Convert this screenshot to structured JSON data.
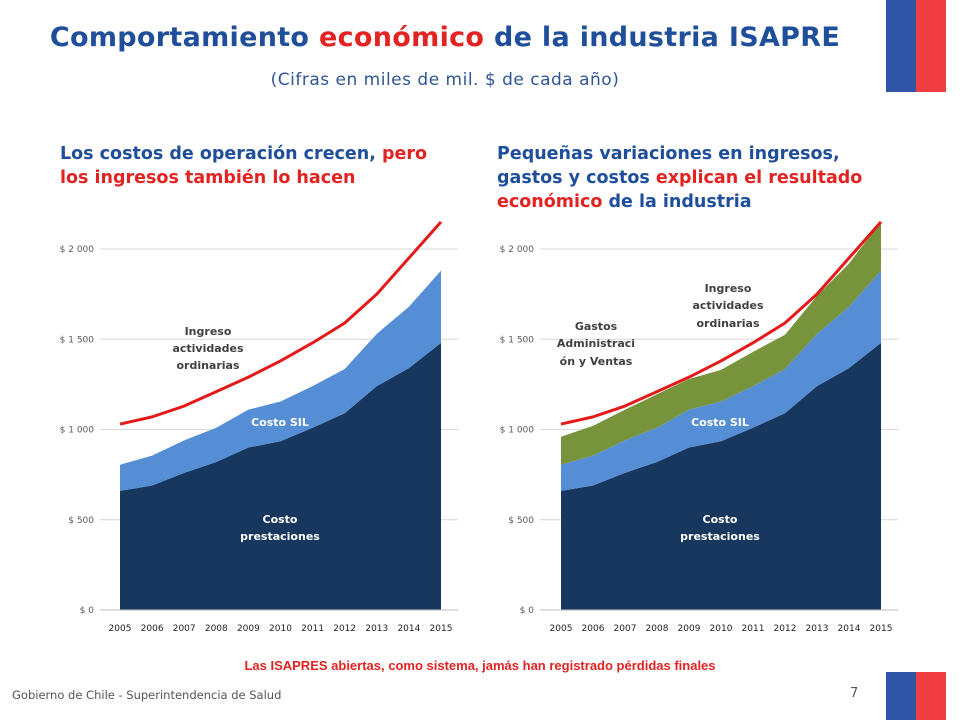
{
  "slide": {
    "title_pre": "Comportamiento ",
    "title_highlight": "económico",
    "title_post": " de la industria ISAPRE",
    "subtitle": "(Cifras en miles de mil. $ de cada año)",
    "left_heading_pre": "Los costos de operación crecen, ",
    "left_heading_highlight": "pero los ingresos también lo hacen",
    "right_heading_pre": "Pequeñas variaciones en ingresos, gastos y costos ",
    "right_heading_highlight": "explican el resultado económico",
    "right_heading_post": " de la industria",
    "note": "Las ISAPRES abiertas, como sistema, jamás han registrado pérdidas finales",
    "footer": "Gobierno de Chile - Superintendencia de Salud",
    "page_number": "7",
    "colors": {
      "title_blue": "#1f4e9a",
      "accent_red": "#e32222",
      "costo_prestaciones": "#17375e",
      "costo_sil": "#558ed5",
      "gastos_admin": "#77933c",
      "ingreso_line": "#e41a1a"
    }
  },
  "chart_data": [
    {
      "type": "area",
      "categories": [
        "2005",
        "2006",
        "2007",
        "2008",
        "2009",
        "2010",
        "2011",
        "2012",
        "2013",
        "2014",
        "2015"
      ],
      "ylim": [
        0,
        2000
      ],
      "yticks": [
        0,
        500,
        1000,
        1500,
        2000
      ],
      "ytick_labels": [
        "$ 0",
        "$ 500",
        "$ 1 000",
        "$ 1 500",
        "$ 2 000"
      ],
      "stacked": true,
      "grid": true,
      "series": [
        {
          "name": "Costo prestaciones",
          "kind": "area",
          "color": "#17375e",
          "values": [
            660,
            690,
            760,
            820,
            900,
            935,
            1010,
            1090,
            1240,
            1340,
            1480
          ]
        },
        {
          "name": "Costo SIL",
          "kind": "area",
          "color": "#558ed5",
          "values": [
            145,
            165,
            180,
            190,
            210,
            220,
            230,
            245,
            290,
            340,
            400
          ]
        },
        {
          "name": "Ingreso actividades ordinarias",
          "kind": "line",
          "color": "#e41a1a",
          "values": [
            1030,
            1070,
            1130,
            1210,
            1290,
            1380,
            1480,
            1590,
            1750,
            1950,
            2150
          ]
        }
      ],
      "labels": [
        {
          "text": "Ingreso",
          "series": "Ingreso actividades ordinarias",
          "color": "#404040"
        },
        {
          "text": "actividades",
          "series": "Ingreso actividades ordinarias",
          "color": "#404040"
        },
        {
          "text": "ordinarias",
          "series": "Ingreso actividades ordinarias",
          "color": "#404040"
        },
        {
          "text": "Costo SIL",
          "series": "Costo SIL",
          "color": "#ffffff"
        },
        {
          "text": "Costo",
          "series": "Costo prestaciones",
          "color": "#ffffff"
        },
        {
          "text": "prestaciones",
          "series": "Costo prestaciones",
          "color": "#ffffff"
        }
      ]
    },
    {
      "type": "area",
      "categories": [
        "2005",
        "2006",
        "2007",
        "2008",
        "2009",
        "2010",
        "2011",
        "2012",
        "2013",
        "2014",
        "2015"
      ],
      "ylim": [
        0,
        2000
      ],
      "yticks": [
        0,
        500,
        1000,
        1500,
        2000
      ],
      "ytick_labels": [
        "$ 0",
        "$ 500",
        "$ 1 000",
        "$ 1 500",
        "$ 2 000"
      ],
      "stacked": true,
      "grid": true,
      "series": [
        {
          "name": "Costo prestaciones",
          "kind": "area",
          "color": "#17375e",
          "values": [
            660,
            690,
            760,
            820,
            900,
            935,
            1010,
            1090,
            1240,
            1340,
            1480
          ]
        },
        {
          "name": "Costo SIL",
          "kind": "area",
          "color": "#558ed5",
          "values": [
            145,
            165,
            180,
            190,
            210,
            220,
            230,
            245,
            290,
            340,
            400
          ]
        },
        {
          "name": "Gastos Administración y Ventas",
          "kind": "area",
          "color": "#77933c",
          "values": [
            155,
            165,
            170,
            185,
            170,
            175,
            190,
            190,
            210,
            240,
            270
          ]
        },
        {
          "name": "Ingreso actividades ordinarias",
          "kind": "line",
          "color": "#e41a1a",
          "values": [
            1030,
            1070,
            1130,
            1210,
            1290,
            1380,
            1480,
            1590,
            1750,
            1950,
            2150
          ]
        }
      ],
      "labels": [
        {
          "text": "Gastos",
          "series": "Gastos Administración y Ventas",
          "color": "#404040"
        },
        {
          "text": "Administraci",
          "series": "Gastos Administración y Ventas",
          "color": "#404040"
        },
        {
          "text": "ón y Ventas",
          "series": "Gastos Administración y Ventas",
          "color": "#404040"
        },
        {
          "text": "Ingreso",
          "series": "Ingreso actividades ordinarias",
          "color": "#404040"
        },
        {
          "text": "actividades",
          "series": "Ingreso actividades ordinarias",
          "color": "#404040"
        },
        {
          "text": "ordinarias",
          "series": "Ingreso actividades ordinarias",
          "color": "#404040"
        },
        {
          "text": "Costo SIL",
          "series": "Costo SIL",
          "color": "#ffffff"
        },
        {
          "text": "Costo",
          "series": "Costo prestaciones",
          "color": "#ffffff"
        },
        {
          "text": "prestaciones",
          "series": "Costo prestaciones",
          "color": "#ffffff"
        }
      ]
    }
  ]
}
